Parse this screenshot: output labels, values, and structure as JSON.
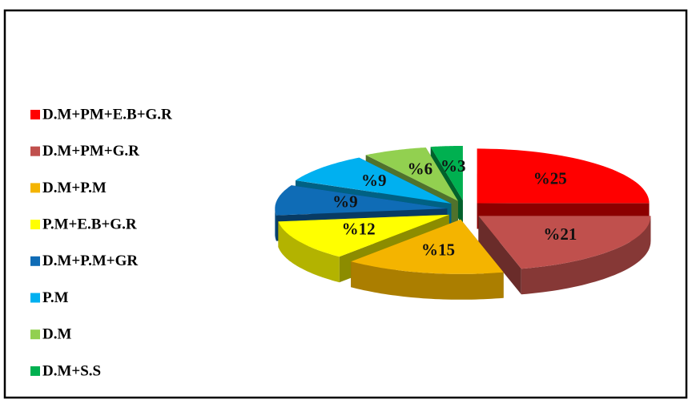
{
  "chart_data": {
    "type": "pie",
    "categories": [
      "D.M+PM+E.B+G.R",
      "D.M+PM+G.R",
      "D.M+P.M",
      "P.M+E.B+G.R",
      "D.M+P.M+GR",
      "P.M",
      "D.M",
      "D.M+S.S"
    ],
    "values": [
      25,
      21,
      15,
      12,
      9,
      9,
      6,
      3
    ],
    "value_labels": [
      "%25",
      "%21",
      "%15",
      "%12",
      "%9",
      "%9",
      "%6",
      "%3"
    ],
    "colors": [
      "#ff0000",
      "#c0504d",
      "#f4b400",
      "#ffff00",
      "#0f6cb6",
      "#00b0f0",
      "#92d050",
      "#00b050"
    ],
    "legend": "left"
  }
}
